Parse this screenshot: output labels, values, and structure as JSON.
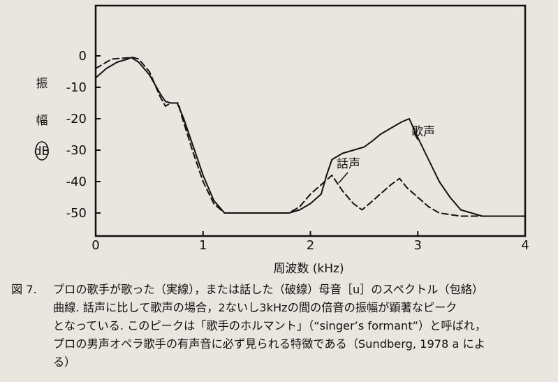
{
  "chart_data": {
    "type": "line",
    "xlabel": "周波数 (kHz)",
    "ylabel_chars": [
      "振",
      "幅"
    ],
    "ylabel_unit": "dB",
    "xlim": [
      0,
      4
    ],
    "ylim": [
      -55,
      5
    ],
    "x_ticks": [
      "0",
      "1",
      "2",
      "3",
      "4"
    ],
    "y_ticks": [
      "0",
      "-10",
      "-20",
      "-30",
      "-40",
      "-50"
    ],
    "series": [
      {
        "name": "歌声",
        "style": "solid",
        "points": [
          [
            0,
            -7
          ],
          [
            0.1,
            -4
          ],
          [
            0.2,
            -2
          ],
          [
            0.3,
            -1
          ],
          [
            0.33,
            -0.5
          ],
          [
            0.4,
            -2
          ],
          [
            0.5,
            -6
          ],
          [
            0.6,
            -12
          ],
          [
            0.65,
            -14.5
          ],
          [
            0.7,
            -15
          ],
          [
            0.76,
            -15
          ],
          [
            0.82,
            -20
          ],
          [
            0.9,
            -28
          ],
          [
            1.0,
            -38
          ],
          [
            1.1,
            -46
          ],
          [
            1.15,
            -48
          ],
          [
            1.2,
            -50
          ],
          [
            1.6,
            -50
          ],
          [
            1.8,
            -50
          ],
          [
            1.9,
            -49
          ],
          [
            2.0,
            -47
          ],
          [
            2.1,
            -44
          ],
          [
            2.15,
            -38
          ],
          [
            2.2,
            -33
          ],
          [
            2.25,
            -32
          ],
          [
            2.3,
            -31
          ],
          [
            2.4,
            -30
          ],
          [
            2.5,
            -29
          ],
          [
            2.58,
            -27
          ],
          [
            2.65,
            -25
          ],
          [
            2.7,
            -24
          ],
          [
            2.8,
            -22
          ],
          [
            2.85,
            -21
          ],
          [
            2.92,
            -20
          ],
          [
            3.0,
            -26
          ],
          [
            3.1,
            -33
          ],
          [
            3.2,
            -40
          ],
          [
            3.3,
            -45
          ],
          [
            3.4,
            -49
          ],
          [
            3.6,
            -51
          ],
          [
            4.0,
            -51
          ]
        ]
      },
      {
        "name": "話声",
        "style": "dashed",
        "points": [
          [
            0,
            -4
          ],
          [
            0.15,
            -1
          ],
          [
            0.35,
            -0.5
          ],
          [
            0.4,
            -1
          ],
          [
            0.5,
            -5
          ],
          [
            0.6,
            -13
          ],
          [
            0.65,
            -16
          ],
          [
            0.7,
            -15
          ],
          [
            0.77,
            -15
          ],
          [
            0.8,
            -19
          ],
          [
            0.9,
            -30
          ],
          [
            1.0,
            -40
          ],
          [
            1.1,
            -47
          ],
          [
            1.2,
            -50
          ],
          [
            1.5,
            -50
          ],
          [
            1.8,
            -50
          ],
          [
            1.9,
            -48
          ],
          [
            2.0,
            -44
          ],
          [
            2.1,
            -41
          ],
          [
            2.2,
            -38
          ],
          [
            2.3,
            -43
          ],
          [
            2.4,
            -47
          ],
          [
            2.48,
            -49
          ],
          [
            2.55,
            -47
          ],
          [
            2.65,
            -44
          ],
          [
            2.75,
            -41
          ],
          [
            2.83,
            -39
          ],
          [
            2.9,
            -42
          ],
          [
            3.0,
            -45
          ],
          [
            3.1,
            -48
          ],
          [
            3.2,
            -50
          ],
          [
            3.4,
            -51
          ],
          [
            3.6,
            -51
          ],
          [
            4.0,
            -51
          ]
        ]
      }
    ],
    "annotations": [
      {
        "text": "歌声",
        "points_to": [
          2.95,
          -22
        ]
      },
      {
        "text": "話声",
        "points_to": [
          2.25,
          -40
        ]
      }
    ]
  },
  "caption": {
    "label": "図 7.",
    "lines": [
      "プロの歌手が歌った（実線），または話した（破線）母音［u］のスペクトル（包絡）",
      "曲線. 話声に比して歌声の場合，2ないし3kHzの間の倍音の振幅が顕著なピーク",
      "となっている. このピークは「歌手のホルマント」（“singer’s formant”）と呼ばれ，",
      "プロの男声オペラ歌手の有声音に必ず見られる特徴である（Sundberg, 1978 a によ",
      "る）"
    ]
  }
}
